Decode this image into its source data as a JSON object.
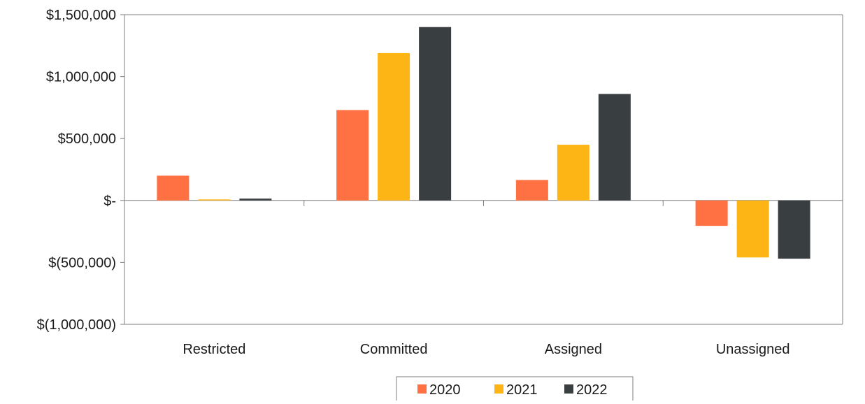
{
  "chart_data": {
    "type": "bar",
    "title": "",
    "xlabel": "",
    "ylabel": "",
    "categories": [
      "Restricted",
      "Committed",
      "Assigned",
      "Unassigned"
    ],
    "series": [
      {
        "name": "2020",
        "color": "#FF7043",
        "values": [
          200000,
          730000,
          165000,
          -205000
        ]
      },
      {
        "name": "2021",
        "color": "#FDB515",
        "values": [
          5000,
          1190000,
          450000,
          -460000
        ]
      },
      {
        "name": "2022",
        "color": "#393E41",
        "values": [
          15000,
          1400000,
          860000,
          -470000
        ]
      }
    ],
    "ylim": [
      -1000000,
      1500000
    ],
    "yticks": [
      1500000,
      1000000,
      500000,
      0,
      -500000,
      -1000000
    ],
    "ytick_labels": [
      "$1,500,000",
      "$1,000,000",
      "$500,000",
      "$-",
      "$(500,000)",
      "$(1,000,000)"
    ],
    "grid": false,
    "legend_position": "bottom-center"
  }
}
